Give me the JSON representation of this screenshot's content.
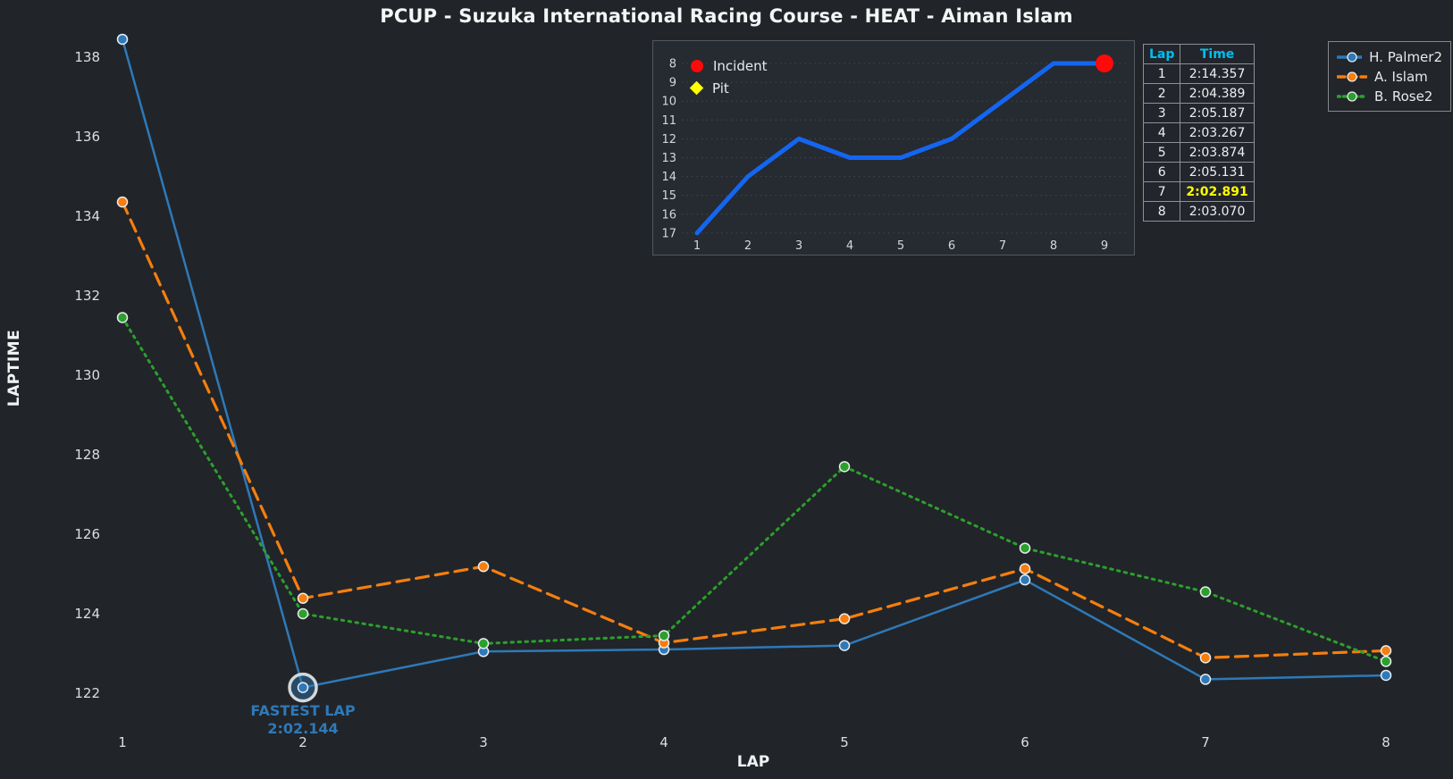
{
  "title": "PCUP - Suzuka International Racing Course - HEAT - Aiman Islam",
  "colors": {
    "background": "#212529",
    "text": "#f1f2f3",
    "tick_label": "#dcdee1",
    "header_cyan": "#00bfef",
    "fastest_yellow": "#ffff00",
    "incident_red": "#ff0a0a",
    "pit_yellow": "#ffff00",
    "inset_line_blue": "#1466f0",
    "annotation_blue": "#2e79b9"
  },
  "chart_data": [
    {
      "id": "laptime-chart",
      "type": "line",
      "xlabel": "LAP",
      "ylabel": "LAPTIME",
      "x": [
        1,
        2,
        3,
        4,
        5,
        6,
        7,
        8
      ],
      "yticks": [
        122,
        124,
        126,
        128,
        130,
        132,
        134,
        136,
        138
      ],
      "ylim": [
        121.3,
        139.2
      ],
      "grid": false,
      "legend_position": "top-right",
      "series": [
        {
          "name": "H. Palmer2",
          "color": "#2e79b9",
          "line_style": "solid",
          "marker": "circle",
          "values": [
            138.45,
            122.144,
            123.05,
            123.1,
            123.2,
            124.85,
            122.35,
            122.45
          ]
        },
        {
          "name": "A. Islam",
          "color": "#f57e0e",
          "line_style": "dashed",
          "marker": "circle",
          "values": [
            134.357,
            124.389,
            125.187,
            123.267,
            123.874,
            125.131,
            122.891,
            123.07
          ]
        },
        {
          "name": "B. Rose2",
          "color": "#2ca02c",
          "line_style": "dotted",
          "marker": "circle",
          "values": [
            131.45,
            124.0,
            123.25,
            123.45,
            127.7,
            125.65,
            124.55,
            122.8
          ]
        }
      ],
      "annotation": {
        "label": "FASTEST LAP",
        "value": "2:02.144",
        "lap": 2,
        "series": "H. Palmer2",
        "laptime_seconds": 122.144
      }
    },
    {
      "id": "position-inset-chart",
      "type": "line",
      "x": [
        1,
        2,
        3,
        4,
        5,
        6,
        7,
        8,
        9
      ],
      "values": [
        17,
        14,
        12,
        13,
        13,
        12,
        10,
        8,
        8
      ],
      "yticks": [
        8,
        9,
        10,
        11,
        12,
        13,
        14,
        15,
        16,
        17
      ],
      "y_inverted": true,
      "grid": true,
      "line_color": "#1466f0",
      "markers": [
        {
          "type": "incident",
          "x": 9,
          "y": 8,
          "color": "#ff0a0a"
        }
      ],
      "legend": [
        {
          "label": "Incident",
          "marker": "circle",
          "color": "#ff0a0a"
        },
        {
          "label": "Pit",
          "marker": "diamond",
          "color": "#ffff00"
        }
      ]
    }
  ],
  "lap_table": {
    "headers": [
      "Lap",
      "Time"
    ],
    "rows": [
      [
        "1",
        "2:14.357"
      ],
      [
        "2",
        "2:04.389"
      ],
      [
        "3",
        "2:05.187"
      ],
      [
        "4",
        "2:03.267"
      ],
      [
        "5",
        "2:03.874"
      ],
      [
        "6",
        "2:05.131"
      ],
      [
        "7",
        "2:02.891"
      ],
      [
        "8",
        "2:03.070"
      ]
    ],
    "fastest_row_index": 6
  }
}
